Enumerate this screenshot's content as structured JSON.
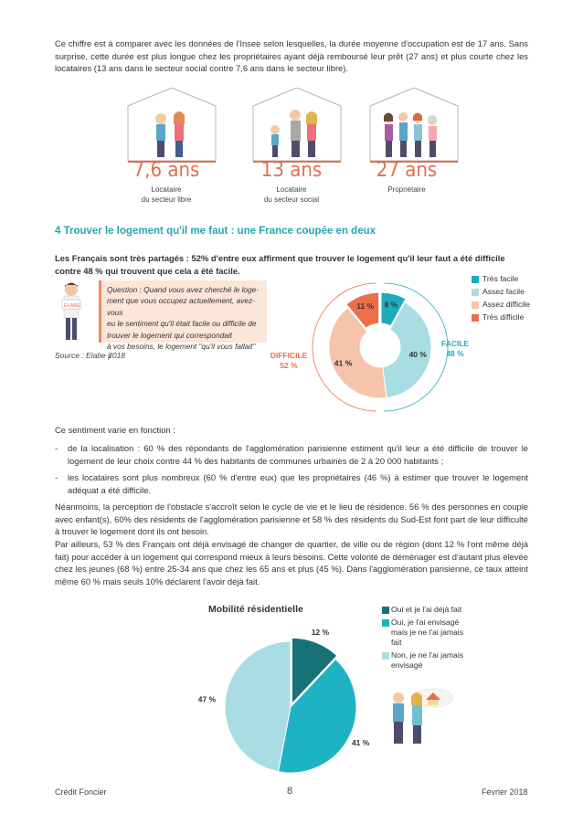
{
  "intro_text": "Ce chiffre est à comparer avec les données de l'Insee selon lesquelles, la durée moyenne d'occupation est de 17 ans. Sans surprise, cette durée est plus longue chez les propriétaires ayant déjà remboursé leur prêt (27 ans) et plus courte chez les locataires (13 ans dans le secteur social contre 7,6 ans dans le secteur libre).",
  "houses": [
    {
      "value": "7,6 ans",
      "label_1": "Locataire",
      "label_2": "du secteur libre"
    },
    {
      "value": "13 ans",
      "label_1": "Locataire",
      "label_2": "du secteur social"
    },
    {
      "value": "27 ans",
      "label_1": "Propriétaire",
      "label_2": ""
    }
  ],
  "section_title": "4  Trouver le logement qu'il me faut : une France coupée en deux",
  "lead_text": "Les Français sont très partagés : 52% d'entre eux affirment que trouver le logement qu'il leur faut a été difficile contre 48 % qui trouvent que cela a été facile.",
  "question": {
    "badge": "ELABE",
    "lines": [
      "Question : Quand vous avez cherché le loge-",
      "ment que vous occupez actuellement, avez-vous",
      "eu le sentiment qu'il était facile ou difficile de",
      "trouver le logement qui correspondait",
      "à vos besoins, le logement \"qu'il vous fallait\" ?"
    ]
  },
  "source": "Source : Elabe 2018",
  "group_labels": {
    "difficile": "DIFFICILE",
    "difficile_pct": "52 %",
    "facile": "FACILE",
    "facile_pct": "48  %"
  },
  "colors": {
    "teal": "#1eabbd",
    "light_teal": "#a8dde3",
    "peach": "#f6c3ab",
    "orange": "#ec6f4a",
    "dark_teal": "#167277",
    "title": "#2aa3b4"
  },
  "chart_data": [
    {
      "type": "pie",
      "title": "",
      "labels": [
        "Très facile",
        "Assez facile",
        "Assez difficile",
        "Très difficile"
      ],
      "values": [
        8,
        40,
        41,
        11
      ],
      "value_labels": [
        "8 %",
        "40 %",
        "41  %",
        "11 %"
      ],
      "legend_position": "top-right"
    },
    {
      "type": "pie",
      "title": "Mobilité résidentielle",
      "labels": [
        "Oui et je l'ai déjà fait",
        "Oui, je l'ai envisagé mais je ne l'ai jamais fait",
        "Non, je ne l'ai jamais envisagé"
      ],
      "values": [
        12,
        41,
        47
      ],
      "value_labels": [
        "12  %",
        "41 %",
        "47 %"
      ],
      "legend_position": "right"
    }
  ],
  "legend1": [
    "Très facile",
    "Assez facile",
    "Assez difficile",
    "Très difficile"
  ],
  "legend2": [
    {
      "l1": "Oui et je l'ai déjà fait",
      "l2": "",
      "l3": ""
    },
    {
      "l1": "Oui, je l'ai envisagé",
      "l2": "mais je ne l'ai jamais",
      "l3": "fait"
    },
    {
      "l1": "Non, je ne l'ai jamais",
      "l2": "envisagé",
      "l3": ""
    }
  ],
  "sentiment_intro": "Ce sentiment varie en fonction :",
  "bullets": [
    {
      "dash": "-",
      "text": "de la localisation : 60 % des répondants de l'agglomération parisienne estiment qu'il leur a été difficile de trouver le logement de leur choix contre 44 % des habitants de communes urbaines de 2 à 20 000 habitants ;"
    },
    {
      "dash": "-",
      "text": "les locataires sont plus nombreux (60 % d'entre eux) que les propriétaires (46 %) à estimer que trouver le logement adéquat a été difficile."
    }
  ],
  "para_neanmoins": "Néanmoins, la perception de l'obstacle s'accroît selon le cycle de vie et le lieu de résidence. 56 % des personnes en couple avec enfant(s), 60% des résidents de l'agglomération parisienne et 58 % des résidents du Sud-Est font part de leur difficulté à trouver le logement dont ils ont besoin.",
  "para_ailleurs": "Par ailleurs, 53 % des Français ont déjà envisagé de changer de quartier, de ville ou de région (dont 12 % l'ont même déjà fait) pour accéder à un logement qui correspond mieux à leurs besoins. Cette volonté de déménager est d'autant plus élevée chez les jeunes (68 %) entre 25-34 ans que chez les 65 ans et plus (45 %). Dans l'agglomération parisienne, ce taux atteint même 60 % mais seuls 10% déclarent l'avoir déjà fait.",
  "footer": {
    "left": "Crédit Foncier",
    "page": "8",
    "right": "Février 2018"
  }
}
